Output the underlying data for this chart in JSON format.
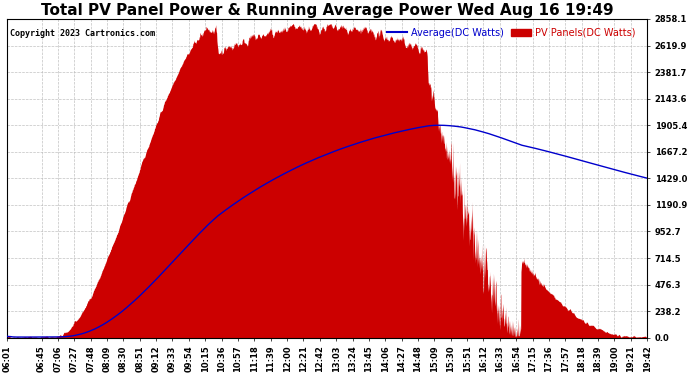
{
  "title": "Total PV Panel Power & Running Average Power Wed Aug 16 19:49",
  "copyright": "Copyright 2023 Cartronics.com",
  "legend_avg": "Average(DC Watts)",
  "legend_pv": "PV Panels(DC Watts)",
  "ymax": 2858.1,
  "ymin": 0.0,
  "yticks": [
    0.0,
    238.2,
    476.3,
    714.5,
    952.7,
    1190.9,
    1429.0,
    1667.2,
    1905.4,
    2143.6,
    2381.7,
    2619.9,
    2858.1
  ],
  "background_color": "#ffffff",
  "fill_color": "#cc0000",
  "line_color": "#0000cc",
  "grid_color": "#bbbbbb",
  "title_fontsize": 11,
  "tick_fontsize": 6.0
}
